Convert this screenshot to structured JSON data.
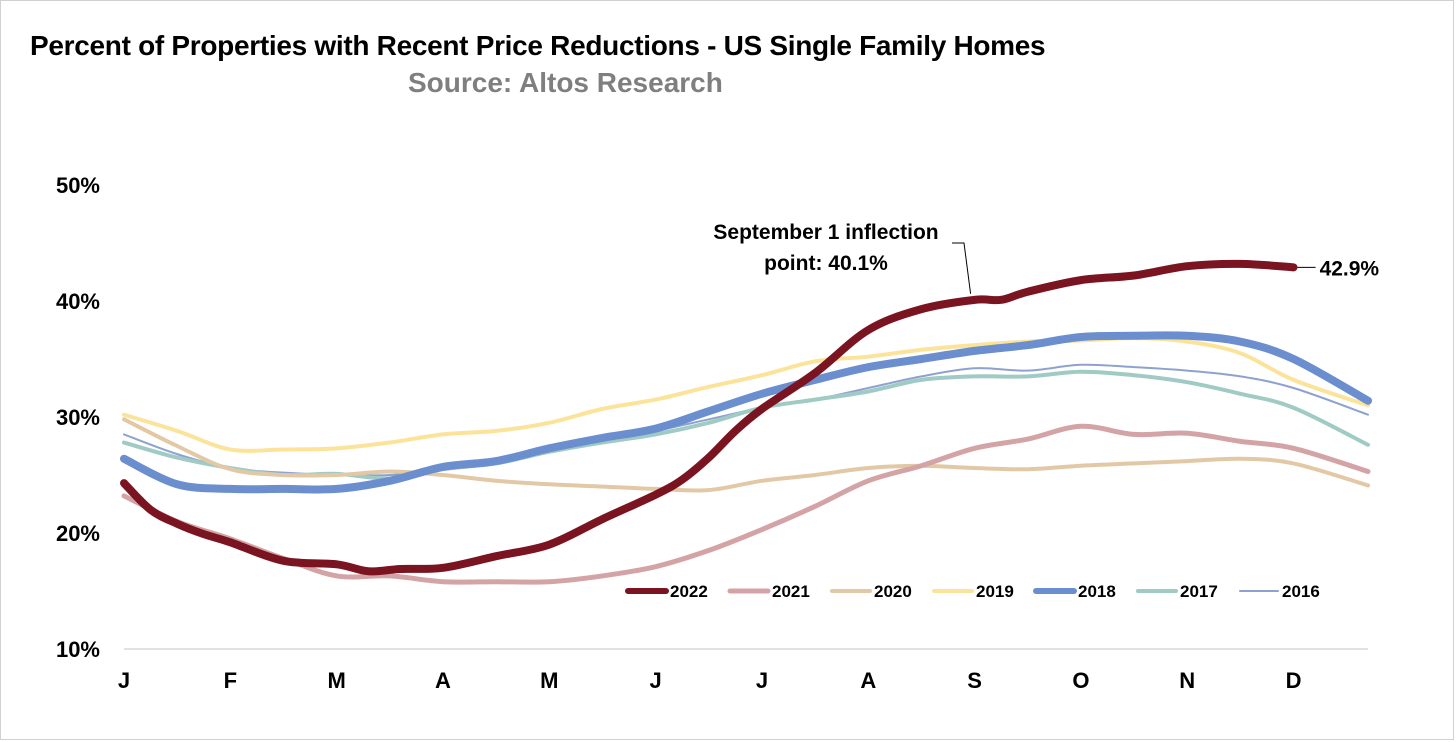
{
  "title": "Percent of Properties with Recent Price Reductions - US Single Family Homes",
  "subtitle": "Source: Altos Research",
  "chart_data": {
    "type": "line",
    "title": "Percent of Properties with Recent Price Reductions - US Single Family Homes",
    "subtitle": "Source: Altos Research",
    "xlabel": "",
    "ylabel": "",
    "ylim": [
      10,
      50
    ],
    "yticks": [
      10,
      20,
      30,
      40,
      50
    ],
    "ytick_labels": [
      "10%",
      "20%",
      "30%",
      "40%",
      "50%"
    ],
    "x_ticks": [
      "J",
      "F",
      "M",
      "A",
      "M",
      "J",
      "J",
      "A",
      "S",
      "O",
      "N",
      "D"
    ],
    "xlim": [
      0,
      11.7
    ],
    "grid": false,
    "legend_position": "lower-right",
    "series": [
      {
        "name": "2016",
        "color": "#8ea2cf",
        "width": 2,
        "x": [
          0,
          0.5,
          1,
          1.5,
          2,
          2.5,
          3,
          3.5,
          4,
          4.5,
          5,
          5.5,
          6,
          6.5,
          7,
          7.5,
          8,
          8.5,
          9,
          9.5,
          10,
          10.5,
          11,
          11.7
        ],
        "y": [
          28.5,
          26.8,
          25.6,
          25.2,
          25.0,
          25.0,
          25.5,
          26.0,
          27.0,
          28.0,
          28.8,
          29.8,
          30.8,
          31.5,
          32.5,
          33.5,
          34.2,
          34.0,
          34.5,
          34.3,
          34.0,
          33.5,
          32.5,
          30.2
        ]
      },
      {
        "name": "2017",
        "color": "#9fcbc4",
        "width": 4,
        "x": [
          0,
          0.5,
          1,
          1.5,
          2,
          2.5,
          3,
          3.5,
          4,
          4.5,
          5,
          5.5,
          6,
          6.5,
          7,
          7.5,
          8,
          8.5,
          9,
          9.5,
          10,
          10.5,
          11,
          11.7
        ],
        "y": [
          27.8,
          26.5,
          25.6,
          25.0,
          25.1,
          24.7,
          25.5,
          26.0,
          27.0,
          27.8,
          28.5,
          29.5,
          30.8,
          31.5,
          32.2,
          33.2,
          33.5,
          33.5,
          33.9,
          33.6,
          33.0,
          32.0,
          30.8,
          27.6
        ]
      },
      {
        "name": "2020",
        "color": "#e3c8a5",
        "width": 4,
        "x": [
          0,
          0.5,
          1,
          1.5,
          2,
          2.5,
          3,
          3.5,
          4,
          4.5,
          5,
          5.5,
          6,
          6.5,
          7,
          7.5,
          8,
          8.5,
          9,
          9.5,
          10,
          10.5,
          11,
          11.7
        ],
        "y": [
          29.8,
          27.5,
          25.5,
          25.0,
          25.0,
          25.3,
          25.0,
          24.5,
          24.2,
          24.0,
          23.8,
          23.7,
          24.5,
          25.0,
          25.6,
          25.8,
          25.6,
          25.5,
          25.8,
          26.0,
          26.2,
          26.4,
          26.0,
          24.1
        ]
      },
      {
        "name": "2021",
        "color": "#d4a3a6",
        "width": 5,
        "x": [
          0,
          0.5,
          1,
          1.5,
          2,
          2.5,
          3,
          3.5,
          4,
          4.5,
          5,
          5.5,
          6,
          6.5,
          7,
          7.5,
          8,
          8.5,
          9,
          9.5,
          10,
          10.5,
          11,
          11.7
        ],
        "y": [
          23.2,
          21.0,
          19.5,
          17.8,
          16.3,
          16.3,
          15.8,
          15.8,
          15.8,
          16.3,
          17.1,
          18.5,
          20.3,
          22.3,
          24.5,
          25.8,
          27.3,
          28.1,
          29.2,
          28.5,
          28.6,
          27.9,
          27.3,
          25.3
        ]
      },
      {
        "name": "2019",
        "color": "#fbe39a",
        "width": 4,
        "x": [
          0,
          0.5,
          1,
          1.5,
          2,
          2.5,
          3,
          3.5,
          4,
          4.5,
          5,
          5.5,
          6,
          6.5,
          7,
          7.5,
          8,
          8.5,
          9,
          9.5,
          10,
          10.5,
          11,
          11.7
        ],
        "y": [
          30.2,
          28.8,
          27.2,
          27.2,
          27.3,
          27.8,
          28.5,
          28.8,
          29.5,
          30.7,
          31.5,
          32.6,
          33.6,
          34.8,
          35.2,
          35.8,
          36.2,
          36.5,
          36.6,
          36.8,
          36.5,
          35.5,
          33.2,
          31.0
        ]
      },
      {
        "name": "2018",
        "color": "#6b8fce",
        "width": 8,
        "x": [
          0,
          0.5,
          1,
          1.5,
          2,
          2.5,
          3,
          3.5,
          4,
          4.5,
          5,
          5.5,
          6,
          6.5,
          7,
          7.5,
          8,
          8.5,
          9,
          9.5,
          10,
          10.5,
          11,
          11.7
        ],
        "y": [
          26.4,
          24.2,
          23.8,
          23.8,
          23.8,
          24.5,
          25.7,
          26.2,
          27.3,
          28.2,
          29.0,
          30.5,
          32.0,
          33.2,
          34.3,
          35.0,
          35.7,
          36.2,
          36.9,
          37.0,
          37.0,
          36.5,
          35.0,
          31.4
        ]
      },
      {
        "name": "2022",
        "color": "#7b1421",
        "width": 8,
        "x": [
          0,
          0.25,
          0.5,
          0.75,
          1,
          1.5,
          2,
          2.3,
          2.6,
          3,
          3.5,
          4,
          4.5,
          5,
          5.25,
          5.5,
          5.75,
          6,
          6.5,
          7,
          7.5,
          8,
          8.25,
          8.5,
          9,
          9.5,
          10,
          10.5,
          11
        ],
        "y": [
          24.3,
          22.0,
          20.8,
          19.9,
          19.2,
          17.6,
          17.3,
          16.7,
          16.9,
          17.0,
          18.0,
          19.0,
          21.2,
          23.3,
          24.6,
          26.5,
          28.8,
          30.7,
          33.8,
          37.5,
          39.3,
          40.1,
          40.1,
          40.8,
          41.8,
          42.2,
          43.0,
          43.2,
          42.9
        ]
      }
    ],
    "legend_order": [
      "2022",
      "2021",
      "2020",
      "2019",
      "2018",
      "2017",
      "2016"
    ],
    "annotations": [
      {
        "text_line1": "September 1 inflection",
        "text_line2": "point: 40.1%",
        "x": 8.0,
        "y": 40.1
      },
      {
        "text": "42.9%",
        "x": 11.0,
        "y": 42.9
      }
    ]
  }
}
